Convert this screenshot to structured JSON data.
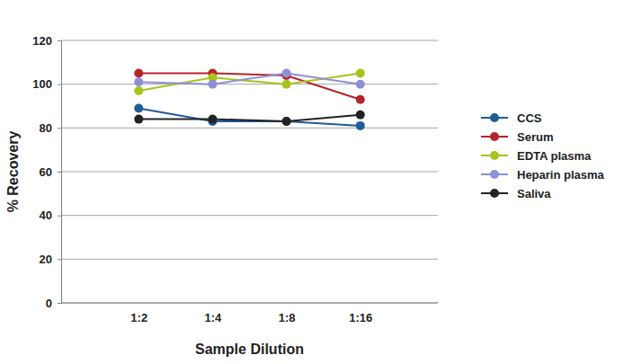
{
  "chart_data": {
    "type": "line",
    "x_label": "Sample Dilution",
    "y_label": "% Recovery",
    "categories": [
      "1:2",
      "1:4",
      "1:8",
      "1:16"
    ],
    "series": [
      {
        "name": "CCS",
        "color": "#1f5b98",
        "values": [
          89,
          83,
          83,
          81
        ]
      },
      {
        "name": "Serum",
        "color": "#b5242a",
        "values": [
          105,
          105,
          104,
          93
        ]
      },
      {
        "name": "EDTA plasma",
        "color": "#a8c31b",
        "values": [
          97,
          103,
          100,
          105
        ]
      },
      {
        "name": "Heparin plasma",
        "color": "#8f8fd8",
        "values": [
          101,
          100,
          105,
          100
        ]
      },
      {
        "name": "Saliva",
        "color": "#222222",
        "values": [
          84,
          84,
          83,
          86
        ]
      }
    ],
    "ylim": [
      0,
      120
    ],
    "yticks": [
      0,
      20,
      40,
      60,
      80,
      100,
      120
    ],
    "grid": true,
    "legend": "right",
    "marker": "circle"
  }
}
